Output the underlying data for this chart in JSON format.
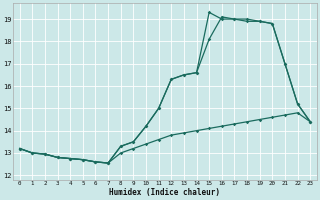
{
  "xlabel": "Humidex (Indice chaleur)",
  "background_color": "#cce8e8",
  "grid_color": "#ffffff",
  "line_color": "#1a6b5e",
  "xlim": [
    -0.5,
    23.5
  ],
  "ylim": [
    11.8,
    19.7
  ],
  "yticks": [
    12,
    13,
    14,
    15,
    16,
    17,
    18,
    19
  ],
  "xticks": [
    0,
    1,
    2,
    3,
    4,
    5,
    6,
    7,
    8,
    9,
    10,
    11,
    12,
    13,
    14,
    15,
    16,
    17,
    18,
    19,
    20,
    21,
    22,
    23
  ],
  "series1_x": [
    0,
    1,
    2,
    3,
    4,
    5,
    6,
    7,
    8,
    9,
    10,
    11,
    12,
    13,
    14,
    15,
    16,
    17,
    18,
    19,
    20,
    21,
    22,
    23
  ],
  "series1_y": [
    13.2,
    13.0,
    12.95,
    12.8,
    12.75,
    12.7,
    12.6,
    12.55,
    13.0,
    13.2,
    13.4,
    13.6,
    13.8,
    13.9,
    14.0,
    14.1,
    14.2,
    14.3,
    14.4,
    14.5,
    14.6,
    14.7,
    14.8,
    14.4
  ],
  "series2_x": [
    0,
    1,
    2,
    3,
    4,
    5,
    6,
    7,
    8,
    9,
    10,
    11,
    12,
    13,
    14,
    15,
    16,
    17,
    18,
    19,
    20,
    21,
    22,
    23
  ],
  "series2_y": [
    13.2,
    13.0,
    12.95,
    12.8,
    12.75,
    12.7,
    12.6,
    12.55,
    13.3,
    13.5,
    14.2,
    15.0,
    16.3,
    16.5,
    16.6,
    18.1,
    19.1,
    19.0,
    18.9,
    18.9,
    18.8,
    17.0,
    15.2,
    14.4
  ],
  "series3_x": [
    0,
    1,
    2,
    3,
    4,
    5,
    6,
    7,
    8,
    9,
    10,
    11,
    12,
    13,
    14,
    15,
    16,
    17,
    18,
    19,
    20,
    21,
    22,
    23
  ],
  "series3_y": [
    13.2,
    13.0,
    12.95,
    12.8,
    12.75,
    12.7,
    12.6,
    12.55,
    13.3,
    13.5,
    14.2,
    15.0,
    16.3,
    16.5,
    16.6,
    19.3,
    19.0,
    19.0,
    19.0,
    18.9,
    18.8,
    17.0,
    15.2,
    14.4
  ]
}
